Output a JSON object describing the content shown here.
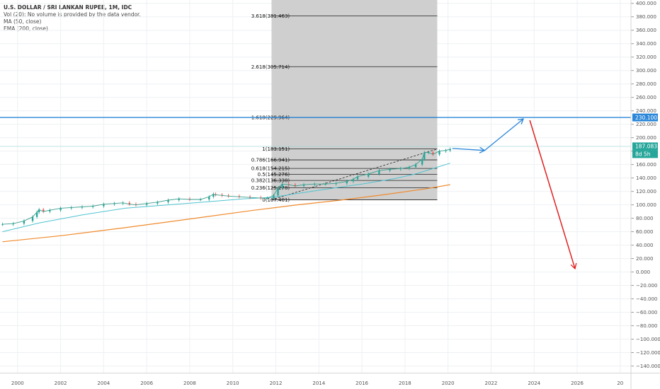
{
  "header": {
    "title": "U.S. DOLLAR / SRI LANKAN RUPEE, 1M, IDC",
    "volume_note": "Vol (20): No volume is provided by the data vendor.",
    "ma_label": "MA (50, close)",
    "ema_label": "EMA (200, close)"
  },
  "colors": {
    "background": "#ffffff",
    "grid": "#eef0f3",
    "fib_zone": "#cfcfcf",
    "ma": "#4fc3cf",
    "ema": "#f08a2c",
    "up_candle": "#26a69a",
    "down_candle": "#ef5350",
    "target_line": "#2a86d8",
    "arrow_up": "#2a86d8",
    "arrow_down": "#e02020",
    "price_badge": "#26a69a",
    "target_badge": "#2a86d8"
  },
  "price_badges": {
    "target": "230.100",
    "last": "187.083",
    "countdown": "8d 5h"
  },
  "chart_data": {
    "type": "candlestick",
    "title": "U.S. DOLLAR / SRI LANKAN RUPEE, 1M, IDC",
    "x_axis": {
      "ticks": [
        "2000",
        "2002",
        "2004",
        "2006",
        "2008",
        "2010",
        "2012",
        "2014",
        "2016",
        "2018",
        "2020",
        "2022",
        "2024",
        "2026",
        "20"
      ],
      "range": [
        1999.3,
        2028.5
      ]
    },
    "y_axis": {
      "position": "right",
      "range": [
        -150,
        405
      ],
      "ticks": [
        "400.000",
        "380.000",
        "360.000",
        "340.000",
        "320.000",
        "300.000",
        "280.000",
        "260.000",
        "240.000",
        "220.000",
        "200.000",
        "180.000",
        "160.000",
        "140.000",
        "120.000",
        "100.000",
        "80.000",
        "60.000",
        "40.000",
        "20.000",
        "0.000",
        "−20.000",
        "−40.000",
        "−60.000",
        "−80.000",
        "−100.000",
        "−120.000",
        "−140.000"
      ]
    },
    "grid": true,
    "price_series": {
      "name": "USD/LKR",
      "x": [
        1999.3,
        1999.8,
        2000.3,
        2000.7,
        2000.9,
        2001.0,
        2001.2,
        2001.5,
        2002.0,
        2002.5,
        2003.0,
        2003.5,
        2004.0,
        2004.5,
        2004.9,
        2005.2,
        2005.5,
        2006.0,
        2006.5,
        2007.0,
        2007.5,
        2008.0,
        2008.5,
        2008.9,
        2009.1,
        2009.2,
        2009.5,
        2009.8,
        2010.3,
        2010.8,
        2011.3,
        2011.6,
        2011.9,
        2012.1,
        2012.3,
        2012.6,
        2012.9,
        2013.3,
        2013.8,
        2014.3,
        2014.8,
        2015.3,
        2015.6,
        2015.8,
        2016.3,
        2016.8,
        2017.3,
        2017.8,
        2018.2,
        2018.5,
        2018.8,
        2018.9,
        2019.1,
        2019.3,
        2019.6,
        2019.9,
        2020.1
      ],
      "y": [
        71,
        72,
        76,
        82,
        89,
        93,
        90,
        92,
        95,
        96,
        97,
        98,
        101,
        102,
        103,
        101,
        100,
        102,
        104,
        107,
        109,
        108,
        108,
        112,
        116,
        115,
        114,
        113,
        112,
        111,
        110,
        110,
        114,
        125,
        131,
        130,
        128,
        130,
        131,
        131,
        132,
        135,
        138,
        142,
        146,
        151,
        153,
        154,
        156,
        160,
        168,
        178,
        178,
        175,
        180,
        181,
        183
      ]
    },
    "ma_series": {
      "name": "MA (50, close)",
      "x": [
        1999.3,
        2001.0,
        2003.0,
        2005.0,
        2007.0,
        2009.0,
        2010.5,
        2011.8,
        2013.0,
        2014.5,
        2016.0,
        2017.5,
        2018.5,
        2019.5,
        2020.1
      ],
      "y": [
        60,
        73,
        85,
        95,
        100,
        105,
        109,
        111,
        117,
        124,
        131,
        139,
        146,
        156,
        162
      ]
    },
    "ema_series": {
      "name": "EMA (200, close)",
      "x": [
        1999.3,
        2002.0,
        2005.0,
        2008.0,
        2011.0,
        2013.0,
        2015.0,
        2017.0,
        2019.0,
        2020.1
      ],
      "y": [
        45,
        54,
        66,
        79,
        92,
        100,
        107,
        115,
        124,
        130
      ]
    },
    "fibonacci": {
      "x_start": 2011.8,
      "x_end": 2019.5,
      "levels": [
        {
          "ratio": "0",
          "value": 107.401,
          "label": "0(107.401)"
        },
        {
          "ratio": "0.236",
          "value": 125.278,
          "label": "0.236(125.278)"
        },
        {
          "ratio": "0.382",
          "value": 136.338,
          "label": "0.382(136.338)"
        },
        {
          "ratio": "0.5",
          "value": 145.276,
          "label": "0.5(145.276)"
        },
        {
          "ratio": "0.618",
          "value": 154.215,
          "label": "0.618(154.215)"
        },
        {
          "ratio": "0.786",
          "value": 166.941,
          "label": "0.786(166.941)"
        },
        {
          "ratio": "1",
          "value": 183.151,
          "label": "1(183.151)"
        },
        {
          "ratio": "1.618",
          "value": 229.964,
          "label": "1.618(229.964)"
        },
        {
          "ratio": "2.618",
          "value": 305.714,
          "label": "2.618(305.714)"
        },
        {
          "ratio": "3.618",
          "value": 381.463,
          "label": "3.618(381.463)"
        }
      ]
    },
    "horizontal_lines": [
      {
        "value": 230.1,
        "label": "230.100"
      },
      {
        "value": 187.083,
        "label": "187.083"
      }
    ],
    "projection_arrows": [
      {
        "x": [
          2020.2,
          2021.7
        ],
        "y": [
          184,
          181
        ]
      },
      {
        "x": [
          2021.7,
          2023.5
        ],
        "y": [
          181,
          228
        ]
      },
      {
        "x": [
          2023.8,
          2025.9
        ],
        "y": [
          226,
          5
        ]
      }
    ]
  }
}
